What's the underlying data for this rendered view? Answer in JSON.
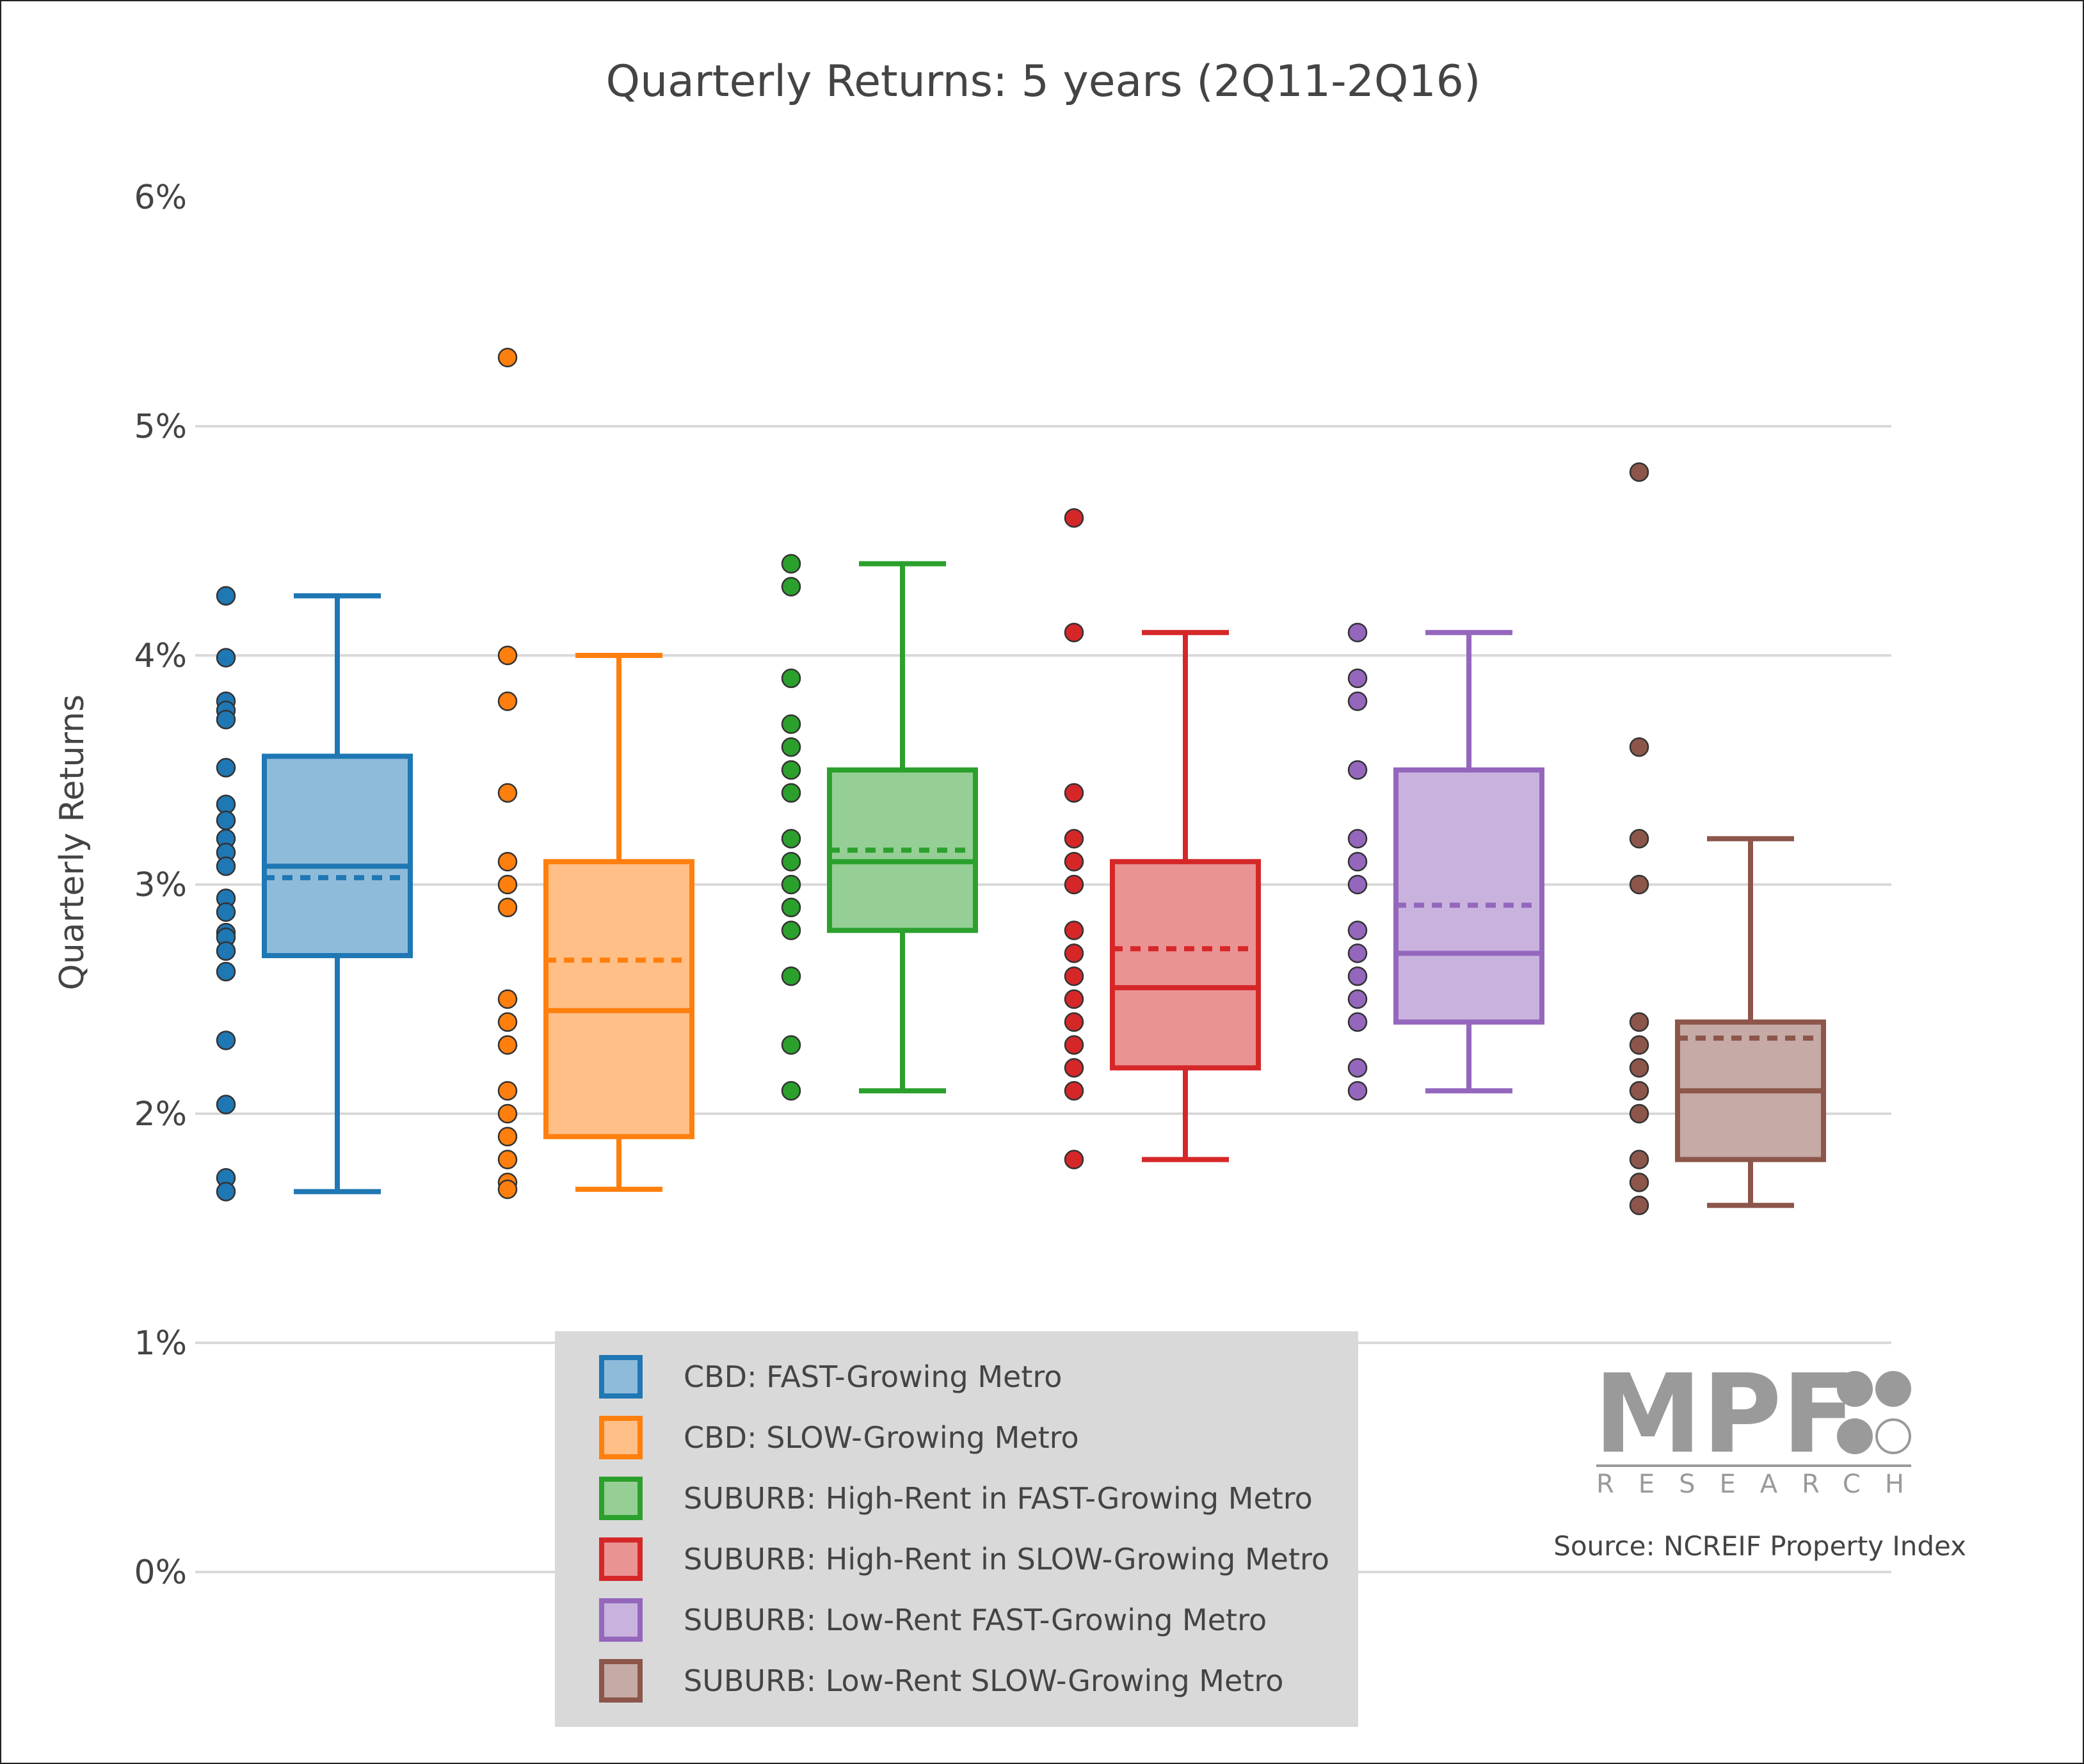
{
  "chart_data": {
    "type": "box",
    "title": "Quarterly Returns: 5 years (2Q11-2Q16)",
    "ylabel": "Quarterly Returns",
    "xlabel": "",
    "ylim": [
      -0.6,
      6.6
    ],
    "yticks": [
      {
        "value": 0,
        "label": "0%"
      },
      {
        "value": 1,
        "label": "1%"
      },
      {
        "value": 2,
        "label": "2%"
      },
      {
        "value": 3,
        "label": "3%"
      },
      {
        "value": 4,
        "label": "4%"
      },
      {
        "value": 5,
        "label": "5%"
      },
      {
        "value": 6,
        "label": "6%"
      }
    ],
    "grid": true,
    "legend_position": "bottom-center",
    "series": [
      {
        "name": "CBD: FAST-Growing Metro",
        "color": "#1f77b4",
        "fill": "#8fbbdb",
        "min": 1.66,
        "q1": 2.69,
        "median": 3.08,
        "mean": 3.03,
        "q3": 3.56,
        "max": 4.26,
        "points": [
          4.26,
          3.99,
          3.8,
          3.76,
          3.72,
          3.51,
          3.35,
          3.28,
          3.2,
          3.14,
          3.08,
          2.94,
          2.88,
          2.79,
          2.77,
          2.71,
          2.62,
          2.32,
          2.04,
          1.72,
          1.66
        ]
      },
      {
        "name": "CBD: SLOW-Growing Metro",
        "color": "#ff7f0e",
        "fill": "#ffbf86",
        "min": 1.67,
        "q1": 1.9,
        "median": 2.45,
        "mean": 2.67,
        "q3": 3.1,
        "max": 4.0,
        "points": [
          5.3,
          4.0,
          3.8,
          3.4,
          3.1,
          3.0,
          2.9,
          2.5,
          2.4,
          2.3,
          2.1,
          2.0,
          1.9,
          1.8,
          1.7,
          1.67
        ]
      },
      {
        "name": "SUBURB: High-Rent in FAST-Growing Metro",
        "color": "#2ca02c",
        "fill": "#95cf95",
        "min": 2.1,
        "q1": 2.8,
        "median": 3.1,
        "mean": 3.15,
        "q3": 3.5,
        "max": 4.4,
        "points": [
          4.4,
          4.3,
          3.9,
          3.7,
          3.6,
          3.5,
          3.4,
          3.2,
          3.1,
          3.0,
          2.9,
          2.8,
          2.6,
          2.3,
          2.1
        ]
      },
      {
        "name": "SUBURB: High-Rent in SLOW-Growing Metro",
        "color": "#d62728",
        "fill": "#ea9393",
        "min": 1.8,
        "q1": 2.2,
        "median": 2.55,
        "mean": 2.72,
        "q3": 3.1,
        "max": 4.1,
        "points": [
          4.6,
          4.1,
          3.4,
          3.2,
          3.1,
          3.0,
          2.8,
          2.7,
          2.6,
          2.5,
          2.4,
          2.3,
          2.2,
          2.1,
          1.8
        ]
      },
      {
        "name": "SUBURB: Low-Rent FAST-Growing Metro",
        "color": "#9467bd",
        "fill": "#c9b3de",
        "min": 2.1,
        "q1": 2.4,
        "median": 2.7,
        "mean": 2.91,
        "q3": 3.5,
        "max": 4.1,
        "points": [
          4.1,
          3.9,
          3.8,
          3.5,
          3.2,
          3.1,
          3.0,
          2.8,
          2.7,
          2.6,
          2.5,
          2.4,
          2.2,
          2.1
        ]
      },
      {
        "name": "SUBURB: Low-Rent SLOW-Growing Metro",
        "color": "#8c564b",
        "fill": "#c5aaa5",
        "min": 1.6,
        "q1": 1.8,
        "median": 2.1,
        "mean": 2.33,
        "q3": 2.4,
        "max": 3.2,
        "points": [
          4.8,
          3.6,
          3.2,
          3.0,
          2.4,
          2.3,
          2.2,
          2.1,
          2.0,
          1.8,
          1.7,
          1.6
        ]
      }
    ],
    "source": "Source: NCREIF Property Index"
  },
  "logo": {
    "main_text": "MPF",
    "sub_text": "RESEARCH"
  },
  "colors": {
    "grid": "#d9d9d9",
    "legend_bg": "#d9d9d9",
    "text": "#444444"
  }
}
